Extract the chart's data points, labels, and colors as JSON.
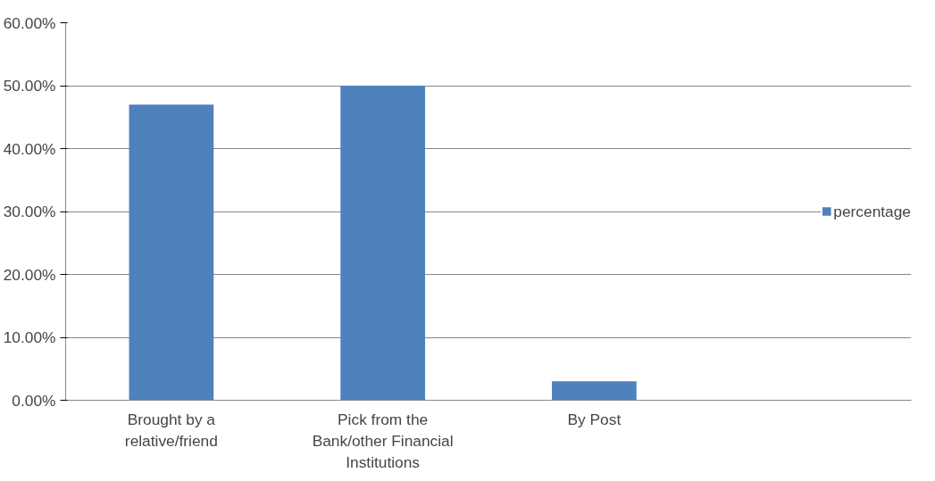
{
  "chart_data": {
    "type": "bar",
    "categories": [
      "Brought by a relative/friend",
      "Pick from the Bank/other Financial Institutions",
      "By Post",
      null
    ],
    "series": [
      {
        "name": "percentage",
        "color": "#4f81bd",
        "values": [
          47,
          50,
          3,
          null
        ]
      }
    ],
    "ylim": [
      0,
      60
    ],
    "yticks": [
      {
        "value": 0,
        "label": "0.00%"
      },
      {
        "value": 10,
        "label": "10.00%"
      },
      {
        "value": 20,
        "label": "20.00%"
      },
      {
        "value": 30,
        "label": "30.00%"
      },
      {
        "value": 40,
        "label": "40.00%"
      },
      {
        "value": 50,
        "label": "50.00%"
      },
      {
        "value": 60,
        "label": "60.00%"
      }
    ],
    "grid": "y",
    "legend": "right"
  }
}
